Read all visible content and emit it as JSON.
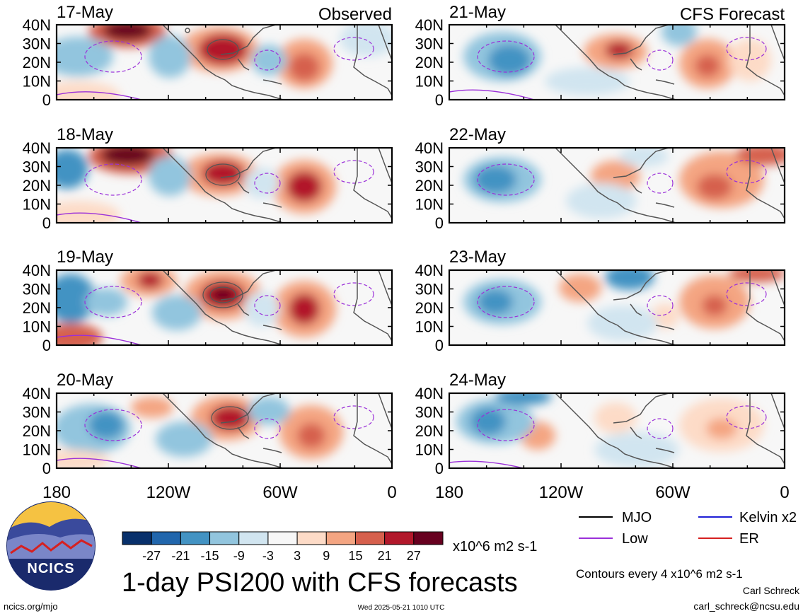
{
  "observed_label": "Observed",
  "forecast_label": "CFS Forecast",
  "observed_panels": [
    {
      "date": "17-May"
    },
    {
      "date": "18-May"
    },
    {
      "date": "19-May"
    },
    {
      "date": "20-May"
    }
  ],
  "forecast_panels": [
    {
      "date": "21-May"
    },
    {
      "date": "22-May"
    },
    {
      "date": "23-May"
    },
    {
      "date": "24-May"
    }
  ],
  "lat_labels": [
    "40N",
    "30N",
    "20N",
    "10N",
    "0"
  ],
  "lon_labels": [
    "180",
    "120W",
    "60W",
    "0"
  ],
  "colorbar": {
    "labels": [
      "-27",
      "-21",
      "-15",
      "-9",
      "-3",
      "3",
      "9",
      "15",
      "21",
      "27"
    ],
    "colors": [
      "#08306b",
      "#2166ac",
      "#4393c3",
      "#92c5de",
      "#d1e5f0",
      "#f7f7f7",
      "#fddbc7",
      "#f4a582",
      "#d6604d",
      "#b2182b",
      "#67001f"
    ],
    "units": "x10^6 m2 s-1"
  },
  "legend": {
    "mjo": "MJO",
    "kelvin": "Kelvin x2",
    "low": "Low",
    "er": "ER",
    "colors": {
      "mjo": "#000000",
      "kelvin": "#1f1fd6",
      "low": "#9b30d9",
      "er": "#d62020"
    }
  },
  "title": "1-day PSI200 with CFS forecasts",
  "contour_note": "Contours every 4 x10^6 m2 s-1",
  "author": "Carl Schreck",
  "email": "carl_schreck@ncsu.edu",
  "url": "ncics.org/mjo",
  "timestamp": "Wed 2025-05-21 1010 UTC",
  "logo_text": "NCICS"
}
